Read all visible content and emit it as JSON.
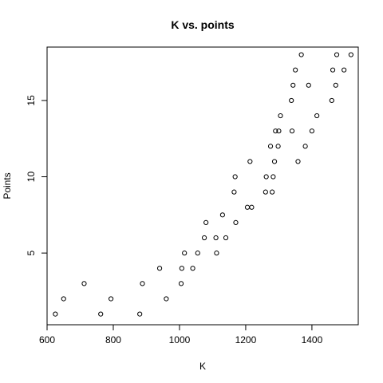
{
  "chart_data": {
    "type": "scatter",
    "title": "K vs. points",
    "xlabel": "K",
    "ylabel": "Points",
    "xlim": [
      600,
      1540
    ],
    "ylim": [
      0.3,
      18.5
    ],
    "x_ticks": [
      600,
      800,
      1000,
      1200,
      1400
    ],
    "y_ticks": [
      5,
      10,
      15
    ],
    "grid": false,
    "legend": "none",
    "marker": "open-circle",
    "points": [
      {
        "x": 625,
        "y": 1
      },
      {
        "x": 650,
        "y": 2
      },
      {
        "x": 712,
        "y": 3
      },
      {
        "x": 762,
        "y": 1
      },
      {
        "x": 793,
        "y": 2
      },
      {
        "x": 880,
        "y": 1
      },
      {
        "x": 888,
        "y": 3
      },
      {
        "x": 940,
        "y": 4
      },
      {
        "x": 960,
        "y": 2
      },
      {
        "x": 1005,
        "y": 3
      },
      {
        "x": 1007,
        "y": 4
      },
      {
        "x": 1015,
        "y": 5
      },
      {
        "x": 1040,
        "y": 4
      },
      {
        "x": 1055,
        "y": 5
      },
      {
        "x": 1075,
        "y": 6
      },
      {
        "x": 1080,
        "y": 7
      },
      {
        "x": 1110,
        "y": 6
      },
      {
        "x": 1112,
        "y": 5
      },
      {
        "x": 1130,
        "y": 7.5
      },
      {
        "x": 1140,
        "y": 6
      },
      {
        "x": 1165,
        "y": 9
      },
      {
        "x": 1168,
        "y": 10
      },
      {
        "x": 1170,
        "y": 7
      },
      {
        "x": 1205,
        "y": 8
      },
      {
        "x": 1213,
        "y": 11
      },
      {
        "x": 1218,
        "y": 8
      },
      {
        "x": 1260,
        "y": 9
      },
      {
        "x": 1262,
        "y": 10
      },
      {
        "x": 1275,
        "y": 12
      },
      {
        "x": 1280,
        "y": 9
      },
      {
        "x": 1283,
        "y": 10
      },
      {
        "x": 1287,
        "y": 11
      },
      {
        "x": 1290,
        "y": 13
      },
      {
        "x": 1298,
        "y": 12
      },
      {
        "x": 1300,
        "y": 13
      },
      {
        "x": 1305,
        "y": 14
      },
      {
        "x": 1338,
        "y": 15
      },
      {
        "x": 1340,
        "y": 13
      },
      {
        "x": 1343,
        "y": 16
      },
      {
        "x": 1350,
        "y": 17
      },
      {
        "x": 1358,
        "y": 11
      },
      {
        "x": 1368,
        "y": 18
      },
      {
        "x": 1380,
        "y": 12
      },
      {
        "x": 1390,
        "y": 16
      },
      {
        "x": 1400,
        "y": 13
      },
      {
        "x": 1415,
        "y": 14
      },
      {
        "x": 1460,
        "y": 15
      },
      {
        "x": 1463,
        "y": 17
      },
      {
        "x": 1472,
        "y": 16
      },
      {
        "x": 1475,
        "y": 18
      },
      {
        "x": 1497,
        "y": 17
      },
      {
        "x": 1518,
        "y": 18
      }
    ]
  }
}
